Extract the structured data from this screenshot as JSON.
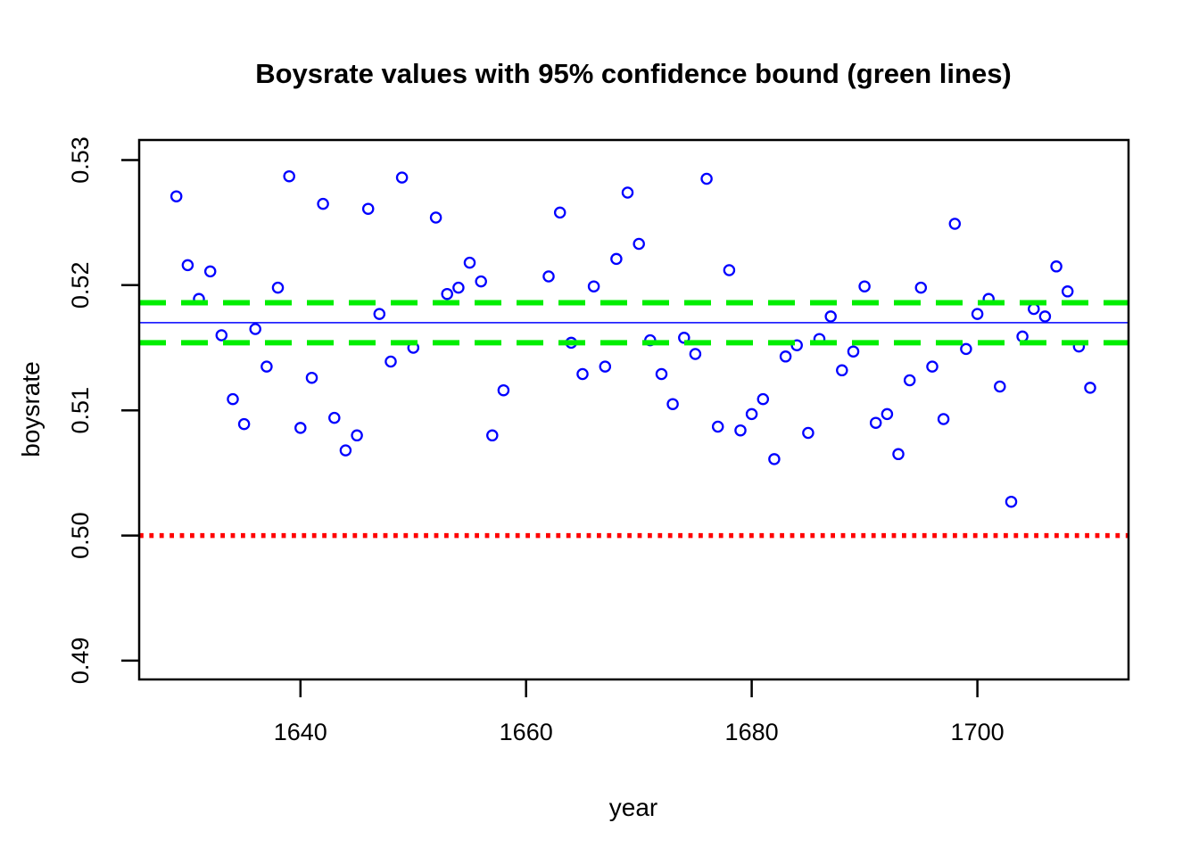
{
  "chart_data": {
    "type": "scatter",
    "title": "Boysrate values with 95% confidence bound (green lines)",
    "xlabel": "year",
    "ylabel": "boysrate",
    "xlim": [
      1625.7,
      1713.4
    ],
    "ylim": [
      0.4885,
      0.5316
    ],
    "grid": false,
    "x_ticks": [
      {
        "value": 1640,
        "label": "1640"
      },
      {
        "value": 1660,
        "label": "1660"
      },
      {
        "value": 1680,
        "label": "1680"
      },
      {
        "value": 1700,
        "label": "1700"
      }
    ],
    "y_ticks": [
      {
        "value": 0.49,
        "label": "0.49"
      },
      {
        "value": 0.5,
        "label": "0.50"
      },
      {
        "value": 0.51,
        "label": "0.51"
      },
      {
        "value": 0.52,
        "label": "0.52"
      },
      {
        "value": 0.53,
        "label": "0.53"
      }
    ],
    "series": [
      {
        "name": "boysrate",
        "marker": "open-circle",
        "color": "#0000FF",
        "points": [
          [
            1629,
            0.5271
          ],
          [
            1630,
            0.5216
          ],
          [
            1631,
            0.5189
          ],
          [
            1632,
            0.5211
          ],
          [
            1633,
            0.516
          ],
          [
            1634,
            0.5109
          ],
          [
            1635,
            0.5089
          ],
          [
            1636,
            0.5165
          ],
          [
            1637,
            0.5135
          ],
          [
            1638,
            0.5198
          ],
          [
            1639,
            0.5287
          ],
          [
            1640,
            0.5086
          ],
          [
            1641,
            0.5126
          ],
          [
            1642,
            0.5265
          ],
          [
            1643,
            0.5094
          ],
          [
            1644,
            0.5068
          ],
          [
            1645,
            0.508
          ],
          [
            1646,
            0.5261
          ],
          [
            1647,
            0.5177
          ],
          [
            1648,
            0.5139
          ],
          [
            1649,
            0.5286
          ],
          [
            1650,
            0.515
          ],
          [
            1652,
            0.5254
          ],
          [
            1653,
            0.5193
          ],
          [
            1654,
            0.5198
          ],
          [
            1655,
            0.5218
          ],
          [
            1656,
            0.5203
          ],
          [
            1657,
            0.508
          ],
          [
            1658,
            0.5116
          ],
          [
            1662,
            0.5207
          ],
          [
            1663,
            0.5258
          ],
          [
            1664,
            0.5154
          ],
          [
            1665,
            0.5129
          ],
          [
            1666,
            0.5199
          ],
          [
            1667,
            0.5135
          ],
          [
            1668,
            0.5221
          ],
          [
            1669,
            0.5274
          ],
          [
            1670,
            0.5233
          ],
          [
            1671,
            0.5156
          ],
          [
            1672,
            0.5129
          ],
          [
            1673,
            0.5105
          ],
          [
            1674,
            0.5158
          ],
          [
            1675,
            0.5145
          ],
          [
            1676,
            0.5285
          ],
          [
            1677,
            0.5087
          ],
          [
            1678,
            0.5212
          ],
          [
            1679,
            0.5084
          ],
          [
            1680,
            0.5097
          ],
          [
            1681,
            0.5109
          ],
          [
            1682,
            0.5061
          ],
          [
            1683,
            0.5143
          ],
          [
            1684,
            0.5152
          ],
          [
            1685,
            0.5082
          ],
          [
            1686,
            0.5157
          ],
          [
            1687,
            0.5175
          ],
          [
            1688,
            0.5132
          ],
          [
            1689,
            0.5147
          ],
          [
            1690,
            0.5199
          ],
          [
            1691,
            0.509
          ],
          [
            1692,
            0.5097
          ],
          [
            1693,
            0.5065
          ],
          [
            1694,
            0.5124
          ],
          [
            1695,
            0.5198
          ],
          [
            1696,
            0.5135
          ],
          [
            1697,
            0.5093
          ],
          [
            1698,
            0.5249
          ],
          [
            1699,
            0.5149
          ],
          [
            1700,
            0.5177
          ],
          [
            1701,
            0.5189
          ],
          [
            1702,
            0.5119
          ],
          [
            1703,
            0.5027
          ],
          [
            1704,
            0.5159
          ],
          [
            1705,
            0.5181
          ],
          [
            1706,
            0.5175
          ],
          [
            1707,
            0.5215
          ],
          [
            1708,
            0.5195
          ],
          [
            1709,
            0.5151
          ],
          [
            1710,
            0.5118
          ]
        ]
      }
    ],
    "hlines": [
      {
        "name": "mean-line",
        "y": 0.517,
        "color": "#0000FF",
        "style": "solid",
        "width": 1.5
      },
      {
        "name": "upper-confidence-line",
        "y": 0.5186,
        "color": "#00EE00",
        "style": "dashed",
        "width": 6
      },
      {
        "name": "lower-confidence-line",
        "y": 0.5154,
        "color": "#00EE00",
        "style": "dashed",
        "width": 6
      },
      {
        "name": "reference-line-0-5",
        "y": 0.5,
        "color": "#FF0000",
        "style": "dotted",
        "width": 5.5
      }
    ],
    "axis_color": "#000000",
    "background": "#FFFFFF"
  }
}
